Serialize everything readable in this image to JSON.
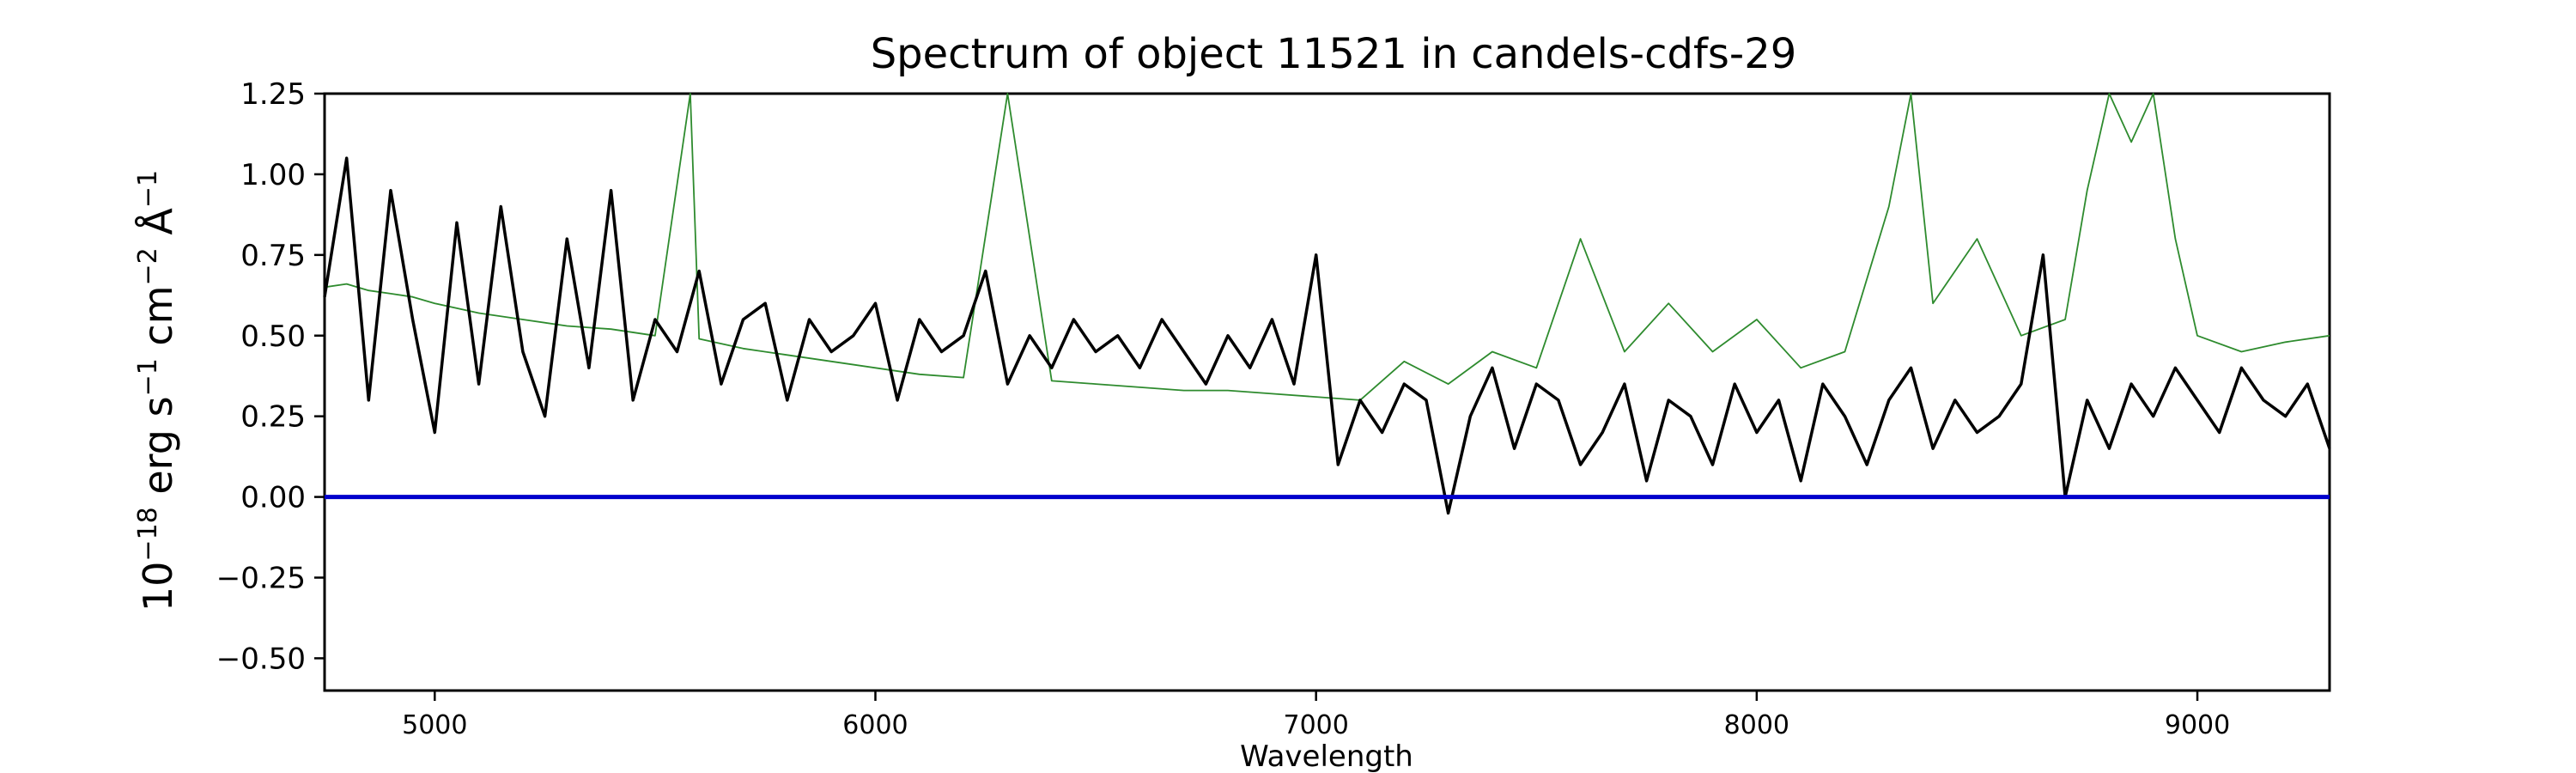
{
  "chart_data": {
    "type": "line",
    "title": "Spectrum of object 11521 in candels-cdfs-29",
    "xlabel": "Wavelength",
    "ylabel_parts": {
      "base": "10",
      "exp": "−18",
      "unit1": " erg s",
      "exp1": "−1",
      "unit2": " cm",
      "exp2": "−2",
      "unit3": " Å",
      "exp3": "−1"
    },
    "xlim": [
      4750,
      9300
    ],
    "ylim": [
      -0.6,
      1.25
    ],
    "xticks": [
      5000,
      6000,
      7000,
      8000,
      9000
    ],
    "yticks": [
      -0.5,
      -0.25,
      0.0,
      0.25,
      0.5,
      0.75,
      1.0,
      1.25
    ],
    "xtick_labels": [
      "5000",
      "6000",
      "7000",
      "8000",
      "9000"
    ],
    "ytick_labels": [
      "−0.50",
      "−0.25",
      "0.00",
      "0.25",
      "0.50",
      "0.75",
      "1.00",
      "1.25"
    ],
    "grid": false,
    "legend": "none",
    "colors": {
      "flux": "#000000",
      "error": "#2e8b2e",
      "zero": "#0000cc"
    },
    "series": [
      {
        "role": "flux",
        "x": [
          4750,
          4800,
          4850,
          4900,
          4950,
          5000,
          5050,
          5100,
          5150,
          5200,
          5250,
          5300,
          5350,
          5400,
          5450,
          5500,
          5550,
          5600,
          5650,
          5700,
          5750,
          5800,
          5850,
          5900,
          5950,
          6000,
          6050,
          6100,
          6150,
          6200,
          6250,
          6300,
          6350,
          6400,
          6450,
          6500,
          6550,
          6600,
          6650,
          6700,
          6750,
          6800,
          6850,
          6900,
          6950,
          7000,
          7050,
          7100,
          7150,
          7200,
          7250,
          7300,
          7350,
          7400,
          7450,
          7500,
          7550,
          7600,
          7650,
          7700,
          7750,
          7800,
          7850,
          7900,
          7950,
          8000,
          8050,
          8100,
          8150,
          8200,
          8250,
          8300,
          8350,
          8400,
          8450,
          8500,
          8550,
          8600,
          8650,
          8700,
          8750,
          8800,
          8850,
          8900,
          8950,
          9000,
          9050,
          9100,
          9150,
          9200,
          9250,
          9300
        ],
        "y": [
          0.62,
          1.05,
          0.3,
          0.95,
          0.55,
          0.2,
          0.85,
          0.35,
          0.9,
          0.45,
          0.25,
          0.8,
          0.4,
          0.95,
          0.3,
          0.55,
          0.45,
          0.7,
          0.35,
          0.55,
          0.6,
          0.3,
          0.55,
          0.45,
          0.5,
          0.6,
          0.3,
          0.55,
          0.45,
          0.5,
          0.7,
          0.35,
          0.5,
          0.4,
          0.55,
          0.45,
          0.5,
          0.4,
          0.55,
          0.45,
          0.35,
          0.5,
          0.4,
          0.55,
          0.35,
          0.75,
          0.1,
          0.3,
          0.2,
          0.35,
          0.3,
          -0.05,
          0.25,
          0.4,
          0.15,
          0.35,
          0.3,
          0.1,
          0.2,
          0.35,
          0.05,
          0.3,
          0.25,
          0.1,
          0.35,
          0.2,
          0.3,
          0.05,
          0.35,
          0.25,
          0.1,
          0.3,
          0.4,
          0.15,
          0.3,
          0.2,
          0.25,
          0.35,
          0.75,
          0.0,
          0.3,
          0.15,
          0.35,
          0.25,
          0.4,
          0.3,
          0.2,
          0.4,
          0.3,
          0.25,
          0.35,
          0.15
        ]
      },
      {
        "role": "error",
        "x": [
          4750,
          4800,
          4850,
          4900,
          4950,
          5000,
          5100,
          5200,
          5300,
          5400,
          5500,
          5580,
          5600,
          5700,
          5800,
          5900,
          6000,
          6100,
          6200,
          6300,
          6400,
          6500,
          6600,
          6700,
          6800,
          6900,
          7000,
          7100,
          7200,
          7300,
          7400,
          7500,
          7600,
          7700,
          7800,
          7900,
          8000,
          8100,
          8200,
          8300,
          8350,
          8400,
          8500,
          8600,
          8700,
          8750,
          8800,
          8850,
          8900,
          8950,
          9000,
          9100,
          9200,
          9300
        ],
        "y": [
          0.65,
          0.66,
          0.64,
          0.63,
          0.62,
          0.6,
          0.57,
          0.55,
          0.53,
          0.52,
          0.5,
          1.25,
          0.49,
          0.46,
          0.44,
          0.42,
          0.4,
          0.38,
          0.37,
          1.25,
          0.36,
          0.35,
          0.34,
          0.33,
          0.33,
          0.32,
          0.31,
          0.3,
          0.42,
          0.35,
          0.45,
          0.4,
          0.8,
          0.45,
          0.6,
          0.45,
          0.55,
          0.4,
          0.45,
          0.9,
          1.25,
          0.6,
          0.8,
          0.5,
          0.55,
          0.95,
          1.25,
          1.1,
          1.25,
          0.8,
          0.5,
          0.45,
          0.48,
          0.5
        ]
      },
      {
        "role": "zero",
        "x": [
          4750,
          9300
        ],
        "y": [
          0.0,
          0.0
        ]
      }
    ]
  }
}
